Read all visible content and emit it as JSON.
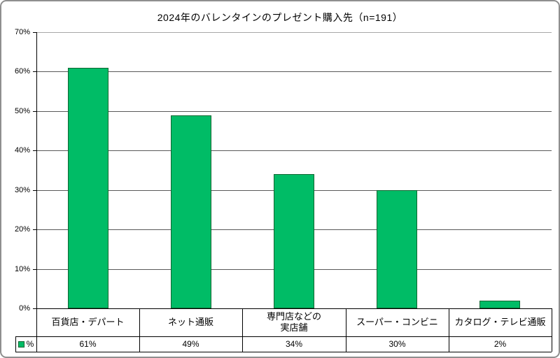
{
  "window": {
    "background": "#ffffff",
    "frame_border_color": "#8f8f8f"
  },
  "chart_data": {
    "type": "bar",
    "title": "2024年のバレンタインのプレゼント購入先（n=191）",
    "categories": [
      "百貨店・デパート",
      "ネット通販",
      "専門店などの\n実店舗",
      "スーパー・コンビニ",
      "カタログ・テレビ通販"
    ],
    "series": [
      {
        "name": "%",
        "values": [
          61,
          49,
          34,
          30,
          2
        ]
      }
    ],
    "value_labels": [
      "61%",
      "49%",
      "34%",
      "30%",
      "2%"
    ],
    "y_tick_labels": [
      "0%",
      "10%",
      "20%",
      "30%",
      "40%",
      "50%",
      "60%",
      "70%"
    ],
    "ylim": [
      0,
      70
    ],
    "y_tick_step": 10,
    "grid": true,
    "data_table": true,
    "legend": {
      "position": "bottom-left-of-data-table",
      "entries": [
        {
          "label": "%",
          "color": "#00bc66"
        }
      ]
    },
    "colors": {
      "bar_fill": "#00bc66",
      "bar_border": "#0d6631",
      "gridline": "#595959",
      "top_gridline": "#a8a8a8",
      "axis": "#000000",
      "table_border": "#000000",
      "text": "#000000"
    }
  }
}
